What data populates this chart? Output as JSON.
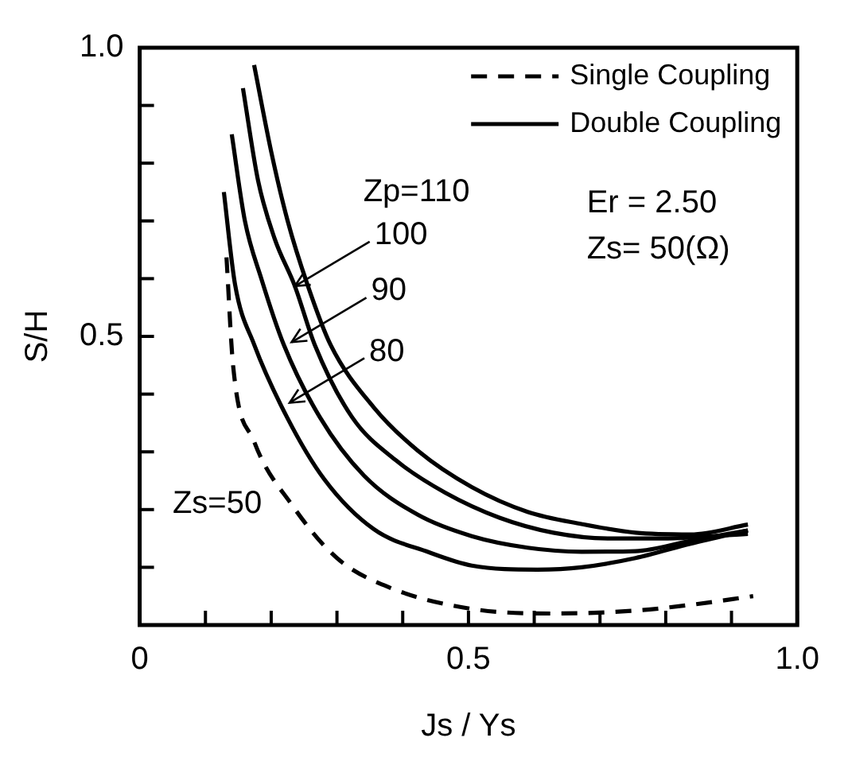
{
  "chart_data": {
    "type": "line",
    "xlabel": "Js / Ys",
    "ylabel": "S/H",
    "xlim": [
      0,
      1
    ],
    "ylim": [
      0,
      1
    ],
    "xticks": [
      0,
      {
        "value": 0.1,
        "label": null
      },
      {
        "value": 0.2,
        "label": null
      },
      {
        "value": 0.3,
        "label": null
      },
      {
        "value": 0.4,
        "label": null
      },
      0.5,
      {
        "value": 0.6,
        "label": null
      },
      {
        "value": 0.7,
        "label": null
      },
      {
        "value": 0.8,
        "label": null
      },
      {
        "value": 0.9,
        "label": null
      },
      {
        "value": 1,
        "label": "1.0"
      }
    ],
    "yticks": [
      {
        "value": 0.1,
        "label": null
      },
      {
        "value": 0.2,
        "label": null
      },
      {
        "value": 0.3,
        "label": null
      },
      {
        "value": 0.4,
        "label": null
      },
      0.5,
      {
        "value": 0.6,
        "label": null
      },
      {
        "value": 0.7,
        "label": null
      },
      {
        "value": 0.8,
        "label": null
      },
      {
        "value": 0.9,
        "label": null
      },
      {
        "value": 1,
        "label": "1.0"
      }
    ],
    "grid": false,
    "legend": "top right",
    "marker": "none",
    "series": [
      {
        "name": "Single Coupling",
        "color": "#000000",
        "line_style": "dashed",
        "x": [
          0.132,
          0.142,
          0.174,
          0.231,
          0.3,
          0.38,
          0.505,
          0.63,
          0.754,
          0.838,
          0.933
        ],
        "values": [
          0.637,
          0.45,
          0.318,
          0.209,
          0.116,
          0.065,
          0.028,
          0.02,
          0.025,
          0.035,
          0.05
        ]
      },
      {
        "name": "Double Coupling",
        "color": "#000000",
        "line_style": "solid",
        "x": [
          0.128,
          0.145,
          0.174,
          0.224,
          0.281,
          0.356,
          0.44,
          0.505,
          0.605,
          0.672,
          0.754,
          0.838,
          0.925
        ],
        "values": [
          0.75,
          0.59,
          0.486,
          0.36,
          0.252,
          0.166,
          0.126,
          0.103,
          0.096,
          0.1,
          0.116,
          0.141,
          0.164
        ]
      },
      {
        "color": "#000000",
        "line_style": "solid",
        "x": [
          0.14,
          0.16,
          0.185,
          0.219,
          0.274,
          0.341,
          0.423,
          0.505,
          0.59,
          0.672,
          0.754,
          0.838,
          0.925
        ],
        "values": [
          0.85,
          0.7,
          0.6,
          0.486,
          0.36,
          0.259,
          0.191,
          0.154,
          0.134,
          0.127,
          0.128,
          0.146,
          0.164
        ]
      },
      {
        "color": "#000000",
        "line_style": "solid",
        "x": [
          0.157,
          0.18,
          0.205,
          0.236,
          0.266,
          0.323,
          0.39,
          0.465,
          0.547,
          0.629,
          0.714,
          0.796,
          0.925
        ],
        "values": [
          0.93,
          0.77,
          0.67,
          0.587,
          0.486,
          0.36,
          0.285,
          0.229,
          0.186,
          0.16,
          0.15,
          0.15,
          0.158
        ]
      },
      {
        "color": "#000000",
        "line_style": "solid",
        "x": [
          0.174,
          0.2,
          0.225,
          0.255,
          0.29,
          0.356,
          0.423,
          0.505,
          0.59,
          0.672,
          0.754,
          0.838,
          0.925
        ],
        "values": [
          0.97,
          0.82,
          0.7,
          0.59,
          0.486,
          0.377,
          0.302,
          0.239,
          0.196,
          0.175,
          0.16,
          0.157,
          0.174
        ]
      }
    ],
    "annotations": [
      "Zp=110",
      "Zs=50",
      "Er = 2.50",
      "Zs= 50(Ω)",
      {
        "text": "100",
        "x": 0.236,
        "y": 0.587
      },
      {
        "text": "90",
        "x": 0.231,
        "y": 0.49
      },
      {
        "text": "80",
        "x": 0.228,
        "y": 0.385
      }
    ]
  }
}
